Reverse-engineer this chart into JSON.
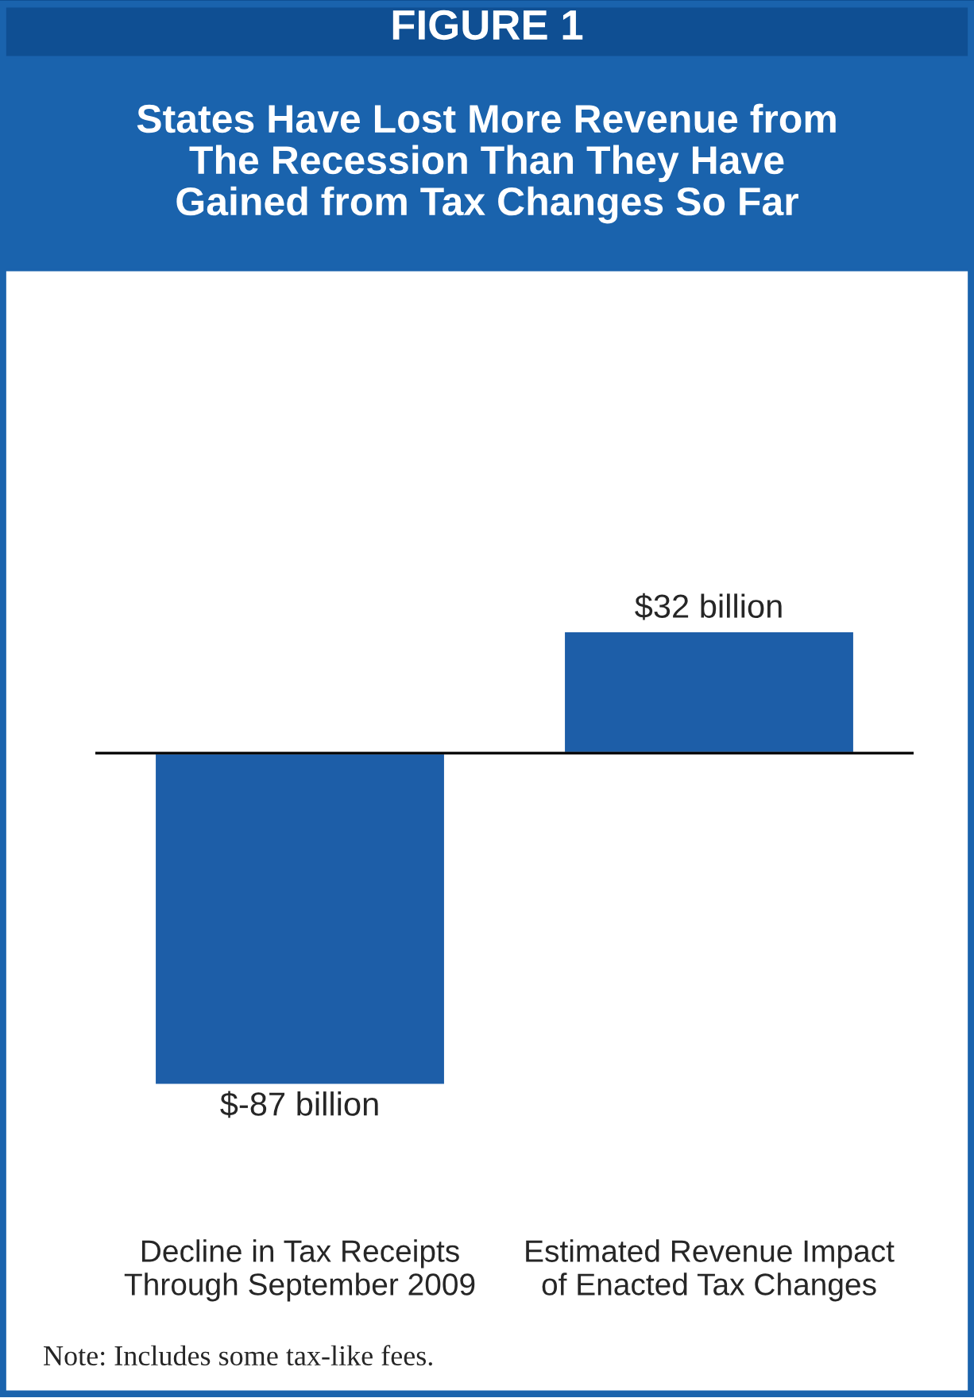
{
  "chart_data": {
    "type": "bar",
    "title": "FIGURE 1",
    "subtitle": "States Have Lost More Revenue from\nThe Recession Than They Have\nGained from Tax Changes So Far",
    "categories": [
      "Decline in Tax Receipts\nThrough September 2009",
      "Estimated Revenue Impact\nof Enacted Tax Changes"
    ],
    "values": [
      -87,
      32
    ],
    "value_labels": [
      "$-87 billion",
      "$32 billion"
    ],
    "color": "#1d5ea8",
    "annotations": [
      "Note: Includes some tax-like fees."
    ],
    "grid": false,
    "legend": false
  }
}
